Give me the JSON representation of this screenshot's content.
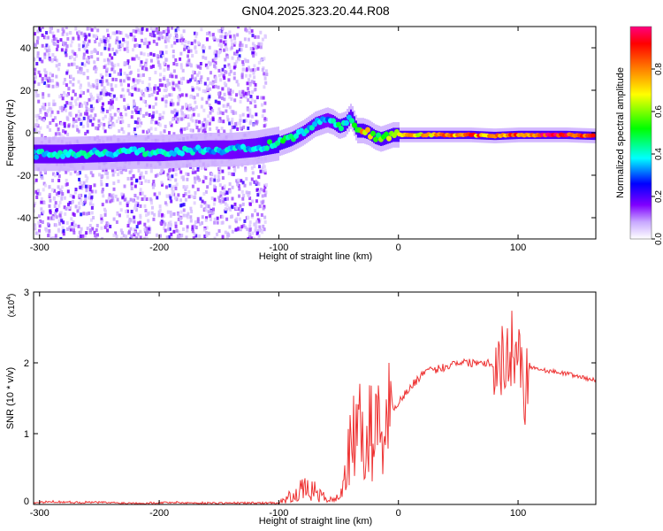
{
  "page": {
    "title": "GN04.2025.323.20.44.R08"
  },
  "chart_data": [
    {
      "type": "heatmap",
      "xlabel": "Height of straight line (km)",
      "ylabel": "Frequency (Hz)",
      "xlim": [
        -305,
        165
      ],
      "ylim": [
        -50,
        50
      ],
      "x_ticks": [
        -300,
        -200,
        -100,
        0,
        100
      ],
      "y_ticks": [
        -40,
        -20,
        0,
        20,
        40
      ],
      "x_tick_labels": [
        "-300",
        "-200",
        "-100",
        "0",
        "100"
      ],
      "y_tick_labels": [
        "-40",
        "-20",
        "0",
        "20",
        "40"
      ],
      "colorbar": {
        "label": "Normalized spectral amplitude",
        "range": [
          0,
          1
        ],
        "ticks": [
          0.0,
          0.2,
          0.4,
          0.6,
          0.8
        ],
        "tick_labels": [
          "0.0",
          "0.2",
          "0.4",
          "0.6",
          "0.8"
        ],
        "colors": [
          "#ffffff",
          "#c8a8ff",
          "#8000ff",
          "#0000ff",
          "#00ffff",
          "#00ff00",
          "#ffff00",
          "#ff8000",
          "#ff0000",
          "#ff0080"
        ]
      },
      "ridge": {
        "x": [
          -305,
          -280,
          -250,
          -220,
          -200,
          -180,
          -160,
          -140,
          -120,
          -100,
          -90,
          -80,
          -70,
          -60,
          -55,
          -50,
          -45,
          -40,
          -35,
          -30,
          -25,
          -20,
          -15,
          -10,
          -5,
          0,
          20,
          40,
          60,
          80,
          100,
          120,
          140,
          165
        ],
        "freq": [
          -10,
          -10,
          -9.5,
          -9,
          -9,
          -8.5,
          -8,
          -8,
          -7,
          -5,
          -3,
          0,
          4,
          6,
          5,
          3,
          4,
          8,
          1,
          1,
          0,
          -2,
          -3,
          -2,
          -1,
          -1,
          -1,
          -1,
          -1,
          -1.5,
          -1,
          -1,
          -1,
          -1.5
        ],
        "amplitude": [
          0.4,
          0.4,
          0.42,
          0.42,
          0.4,
          0.4,
          0.38,
          0.38,
          0.4,
          0.5,
          0.45,
          0.4,
          0.4,
          0.35,
          0.4,
          0.45,
          0.45,
          0.4,
          0.55,
          0.75,
          0.7,
          0.6,
          0.55,
          0.6,
          0.65,
          0.7,
          0.75,
          0.8,
          0.85,
          0.8,
          0.9,
          0.95,
          0.95,
          0.9
        ]
      }
    },
    {
      "type": "line",
      "xlabel": "Height of straight line (km)",
      "ylabel": "SNR (10 * v/v)",
      "y_scale_label": "(x10^4)",
      "y_scale_base": "(x10",
      "y_scale_exp": "4",
      "xlim": [
        -305,
        165
      ],
      "ylim": [
        0,
        3
      ],
      "x_ticks": [
        -300,
        -200,
        -100,
        0,
        100
      ],
      "y_ticks": [
        0,
        1,
        2,
        3
      ],
      "x_tick_labels": [
        "-300",
        "-200",
        "-100",
        "0",
        "100"
      ],
      "y_tick_labels": [
        "0",
        "1",
        "2",
        "3"
      ],
      "series": [
        {
          "name": "SNR",
          "color": "#ee3333",
          "x": [
            -305,
            -290,
            -270,
            -250,
            -230,
            -210,
            -190,
            -170,
            -150,
            -130,
            -110,
            -100,
            -95,
            -90,
            -85,
            -80,
            -75,
            -70,
            -65,
            -60,
            -55,
            -50,
            -45,
            -40,
            -35,
            -30,
            -25,
            -20,
            -15,
            -10,
            -5,
            0,
            10,
            20,
            30,
            40,
            50,
            60,
            70,
            80,
            90,
            95,
            100,
            105,
            110,
            120,
            140,
            165
          ],
          "values": [
            0.02,
            0.04,
            0.03,
            0.03,
            0.02,
            0.02,
            0.03,
            0.02,
            0.02,
            0.02,
            0.02,
            0.03,
            0.06,
            0.12,
            0.18,
            0.2,
            0.22,
            0.18,
            0.12,
            0.08,
            0.06,
            0.1,
            0.35,
            0.8,
            1.1,
            0.95,
            1.0,
            1.05,
            1.1,
            1.25,
            1.35,
            1.45,
            1.65,
            1.85,
            1.9,
            1.95,
            2.02,
            2.0,
            2.02,
            1.98,
            2.05,
            2.2,
            2.3,
            1.6,
            1.95,
            1.9,
            1.85,
            1.75
          ]
        }
      ]
    }
  ]
}
